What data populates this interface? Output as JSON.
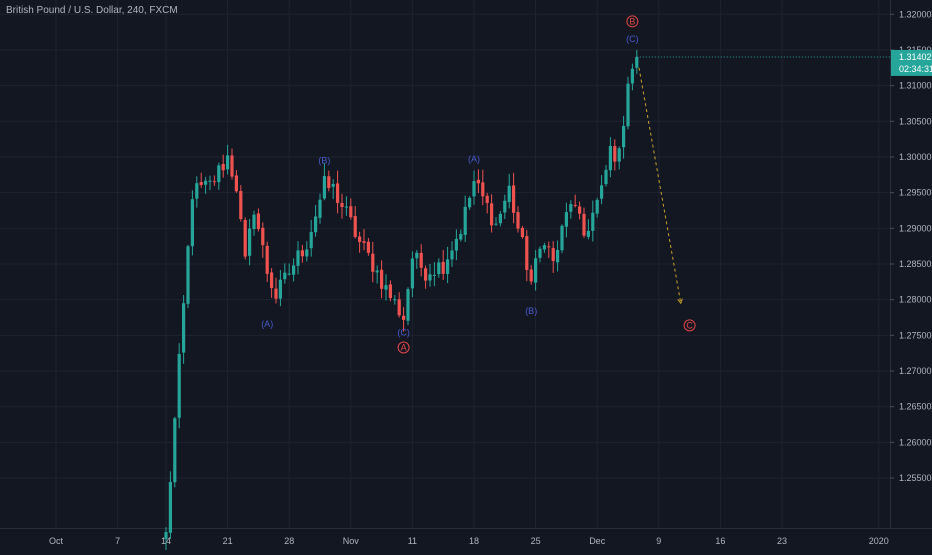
{
  "header": {
    "title": "British Pound / U.S. Dollar, 240, FXCM"
  },
  "colors": {
    "background": "#131722",
    "up": "#26a69a",
    "down": "#ef5350",
    "grid": "#1f2330",
    "axis_text": "#b2b5be",
    "wave_blue": "#4a5bd0",
    "wave_red": "#e04848",
    "projection": "#c9a227",
    "price_badge": "#26a69a"
  },
  "chart_data": {
    "type": "candlestick",
    "title": "British Pound / U.S. Dollar, 240, FXCM",
    "x_axis": {
      "ticks": [
        {
          "label": "Oct",
          "index": -25
        },
        {
          "label": "7",
          "index": -11
        },
        {
          "label": "14",
          "index": 0
        },
        {
          "label": "21",
          "index": 14
        },
        {
          "label": "28",
          "index": 28
        },
        {
          "label": "Nov",
          "index": 42
        },
        {
          "label": "11",
          "index": 56
        },
        {
          "label": "18",
          "index": 70
        },
        {
          "label": "25",
          "index": 84
        },
        {
          "label": "Dec",
          "index": 98
        },
        {
          "label": "9",
          "index": 112
        },
        {
          "label": "16",
          "index": 126
        },
        {
          "label": "23",
          "index": 140
        },
        {
          "label": "2020",
          "index": 162
        }
      ]
    },
    "y_axis": {
      "position": "right",
      "range": [
        1.248,
        1.322
      ],
      "ticks": [
        "1.25500",
        "1.26000",
        "1.26500",
        "1.27000",
        "1.27500",
        "1.28000",
        "1.28500",
        "1.29000",
        "1.29500",
        "1.30000",
        "1.30500",
        "1.31000",
        "1.31500",
        "1.32000"
      ]
    },
    "grid": true,
    "last_price": {
      "value": "1.31402",
      "numeric": 1.31402,
      "countdown": "02:34:31"
    },
    "pivots": [
      {
        "index": 0,
        "price": 1.247
      },
      {
        "index": 6,
        "price": 1.295
      },
      {
        "index": 10,
        "price": 1.296
      },
      {
        "index": 14,
        "price": 1.3
      },
      {
        "index": 16,
        "price": 1.296
      },
      {
        "index": 18,
        "price": 1.285
      },
      {
        "index": 20,
        "price": 1.293
      },
      {
        "index": 23,
        "price": 1.284
      },
      {
        "index": 25,
        "price": 1.2805
      },
      {
        "index": 29,
        "price": 1.285
      },
      {
        "index": 32,
        "price": 1.288
      },
      {
        "index": 36,
        "price": 1.296
      },
      {
        "index": 38,
        "price": 1.2955
      },
      {
        "index": 41,
        "price": 1.292
      },
      {
        "index": 44,
        "price": 1.288
      },
      {
        "index": 47,
        "price": 1.285
      },
      {
        "index": 50,
        "price": 1.2815
      },
      {
        "index": 54,
        "price": 1.2775
      },
      {
        "index": 56,
        "price": 1.286
      },
      {
        "index": 59,
        "price": 1.284
      },
      {
        "index": 63,
        "price": 1.285
      },
      {
        "index": 67,
        "price": 1.29
      },
      {
        "index": 70,
        "price": 1.2965
      },
      {
        "index": 73,
        "price": 1.293
      },
      {
        "index": 75,
        "price": 1.2905
      },
      {
        "index": 78,
        "price": 1.2955
      },
      {
        "index": 80,
        "price": 1.29
      },
      {
        "index": 83,
        "price": 1.2825
      },
      {
        "index": 86,
        "price": 1.289
      },
      {
        "index": 88,
        "price": 1.285
      },
      {
        "index": 92,
        "price": 1.294
      },
      {
        "index": 95,
        "price": 1.289
      },
      {
        "index": 99,
        "price": 1.295
      },
      {
        "index": 101,
        "price": 1.301
      },
      {
        "index": 103,
        "price": 1.3
      },
      {
        "index": 105,
        "price": 1.311
      },
      {
        "index": 107,
        "price": 1.314
      }
    ],
    "wave_labels": [
      {
        "text": "(A)",
        "index": 23,
        "price": 1.2766,
        "color": "blue"
      },
      {
        "text": "(B)",
        "index": 36,
        "price": 1.2995,
        "color": "blue"
      },
      {
        "text": "(C)",
        "index": 54,
        "price": 1.2754,
        "color": "blue"
      },
      {
        "text": "A",
        "index": 54,
        "price": 1.2733,
        "color": "red",
        "circled": true
      },
      {
        "text": "(A)",
        "index": 70,
        "price": 1.2997,
        "color": "blue"
      },
      {
        "text": "(B)",
        "index": 83,
        "price": 1.2784,
        "color": "blue"
      },
      {
        "text": "(C)",
        "index": 106,
        "price": 1.3165,
        "color": "blue"
      },
      {
        "text": "B",
        "index": 106,
        "price": 1.319,
        "color": "red",
        "circled": true
      },
      {
        "text": "C",
        "index": 119,
        "price": 1.2764,
        "color": "red",
        "circled": true
      }
    ],
    "projection": {
      "from": {
        "index": 107.5,
        "price": 1.3125
      },
      "to": {
        "index": 117,
        "price": 1.2795
      }
    }
  }
}
